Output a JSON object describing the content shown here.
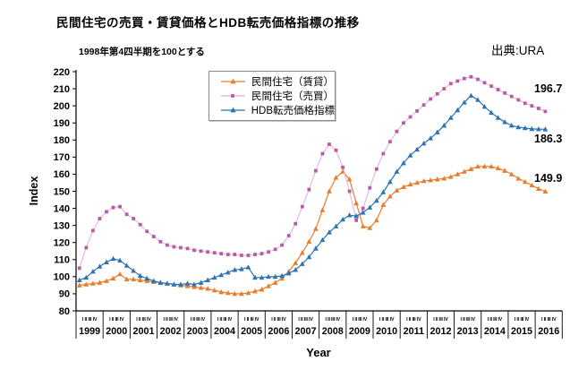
{
  "title": "民間住宅の売買・賃貸価格とHDB転売価格指標の推移",
  "subtitle": "1998年第4四半期を100とする",
  "source": "出典:URA",
  "chart_data": {
    "type": "line",
    "xlabel": "Year",
    "ylabel": "Index",
    "ylim": [
      80,
      220
    ],
    "ytick_step": 10,
    "x_years": [
      1999,
      2000,
      2001,
      2002,
      2003,
      2004,
      2005,
      2006,
      2007,
      2008,
      2009,
      2010,
      2011,
      2012,
      2013,
      2014,
      2015,
      2016
    ],
    "quarter_label": "I II III IV",
    "x_unit": "quarter",
    "x_start": "1999Q1",
    "x_end": "2016Q2",
    "legend_position": "top-center-inside",
    "grid": false,
    "series": [
      {
        "name": "民間住宅（賃貸）",
        "marker": "triangle",
        "color": "#E87D2E",
        "end_label": "149.9",
        "values": [
          95,
          95.5,
          96,
          96.5,
          97.5,
          99,
          101.5,
          98.5,
          98.5,
          98,
          97.5,
          97,
          96.5,
          96,
          95.5,
          95,
          94.5,
          94,
          93.5,
          93,
          92,
          91,
          90.5,
          90,
          90,
          90.5,
          91.5,
          92.5,
          94.5,
          96.5,
          99,
          103,
          108,
          114,
          120.5,
          128,
          139,
          150,
          158,
          161.5,
          157,
          143,
          129.5,
          128.5,
          133,
          142,
          147,
          150.5,
          152.5,
          154,
          155,
          156,
          156.5,
          157,
          157.5,
          158.5,
          160,
          161.5,
          163,
          164.5,
          164.5,
          164.5,
          163.5,
          162,
          160,
          157.5,
          155.5,
          153.5,
          151.5,
          149.9
        ]
      },
      {
        "name": "民間住宅（売買）",
        "marker": "square",
        "color": "#B55CA6",
        "line_color": "#EBA9DB",
        "end_label": "196.7",
        "values": [
          105,
          117,
          127,
          134,
          138,
          140.5,
          141,
          136.5,
          134,
          130.5,
          126.5,
          123.5,
          120.5,
          118.5,
          117.5,
          117,
          116.5,
          115.5,
          115,
          114.5,
          114,
          113.5,
          113,
          113,
          112.5,
          112.5,
          113,
          113.5,
          114.5,
          116,
          118.5,
          124,
          131,
          141,
          151,
          162,
          172,
          177.5,
          174,
          164,
          150,
          133,
          140,
          152,
          163,
          172,
          179,
          185,
          190,
          193.5,
          197,
          200.5,
          204,
          207,
          210,
          213,
          214.5,
          216,
          217,
          215.5,
          213.5,
          211.5,
          209.5,
          207.5,
          205.5,
          203.5,
          201.5,
          200,
          198.5,
          196.7
        ]
      },
      {
        "name": "HDB転売価格指標",
        "marker": "triangle",
        "color": "#2C73B4",
        "end_label": "186.3",
        "values": [
          98,
          99.5,
          103,
          106,
          108.5,
          110.5,
          109.5,
          106.5,
          103.5,
          100.5,
          99,
          97.5,
          96.5,
          96,
          95.5,
          95.5,
          96,
          95.5,
          96.5,
          98,
          99.5,
          101,
          102.5,
          104,
          104.5,
          105.5,
          99.5,
          99.5,
          100,
          100,
          100.5,
          102,
          104,
          107.5,
          111.5,
          116.5,
          121.5,
          126,
          129.5,
          133.5,
          136,
          135.5,
          137.5,
          140.5,
          144.5,
          149.5,
          155.5,
          161.5,
          166.5,
          171,
          174.5,
          178,
          181,
          184.5,
          188.5,
          193,
          197.5,
          202,
          206,
          203.5,
          199.5,
          196,
          193,
          190.5,
          188.5,
          187.5,
          187,
          186.5,
          186.4,
          186.3
        ]
      }
    ]
  }
}
